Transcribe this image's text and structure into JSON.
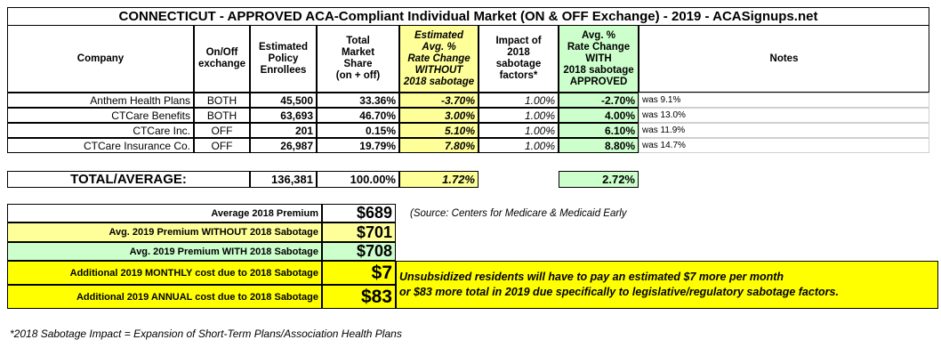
{
  "title": "CONNECTICUT - APPROVED ACA-Compliant Individual Market (ON & OFF Exchange) - 2019 - ACASignups.net",
  "table": {
    "headers": [
      [
        "Company"
      ],
      [
        "On/Off",
        "exchange"
      ],
      [
        "Estimated",
        "Policy",
        "Enrollees"
      ],
      [
        "Total",
        "Market",
        "Share",
        "(on + off)"
      ],
      [
        "Estimated",
        "Avg. %",
        "Rate Change",
        "WITHOUT",
        "2018 sabotage"
      ],
      [
        "Impact of",
        "2018",
        "sabotage",
        "factors*"
      ],
      [
        "Avg. %",
        "Rate Change",
        "WITH",
        "2018 sabotage",
        "APPROVED"
      ],
      [
        "Notes"
      ]
    ],
    "rows": [
      [
        "Anthem Health Plans",
        "BOTH",
        "45,500",
        "33.36%",
        "-3.70%",
        "1.00%",
        "-2.70%",
        "was 9.1%"
      ],
      [
        "CTCare Benefits",
        "BOTH",
        "63,693",
        "46.70%",
        "3.00%",
        "1.00%",
        "4.00%",
        "was 13.0%"
      ],
      [
        "CTCare Inc.",
        "OFF",
        "201",
        "0.15%",
        "5.10%",
        "1.00%",
        "6.10%",
        "was 11.9%"
      ],
      [
        "CTCare Insurance Co.",
        "OFF",
        "26,987",
        "19.79%",
        "7.80%",
        "1.00%",
        "8.80%",
        "was 14.7%"
      ]
    ]
  },
  "total": {
    "label": "TOTAL/AVERAGE:",
    "enrollees": "136,381",
    "share": "100.00%",
    "without": "1.72%",
    "with": "2.72%"
  },
  "premiums": [
    {
      "label": "Average 2018 Premium",
      "value": "$689"
    },
    {
      "label": "Avg. 2019 Premium WITHOUT 2018 Sabotage",
      "value": "$701"
    },
    {
      "label": "Avg. 2019 Premium WITH 2018 Sabotage",
      "value": "$708"
    },
    {
      "label": "Additional 2019 MONTHLY cost due to 2018 Sabotage",
      "value": "$7"
    },
    {
      "label": "Additional 2019 ANNUAL cost due to 2018 Sabotage",
      "value": "$83"
    }
  ],
  "source": "(Source: Centers for Medicare & Medicaid Early",
  "sabotage_note": [
    "Unsubsidized residents will have to pay an estimated $7 more per month",
    "or $83 more total in 2019 due specifically to legislative/regulatory sabotage factors."
  ],
  "footnote": "*2018 Sabotage Impact = Expansion of Short-Term Plans/Association Health Plans"
}
